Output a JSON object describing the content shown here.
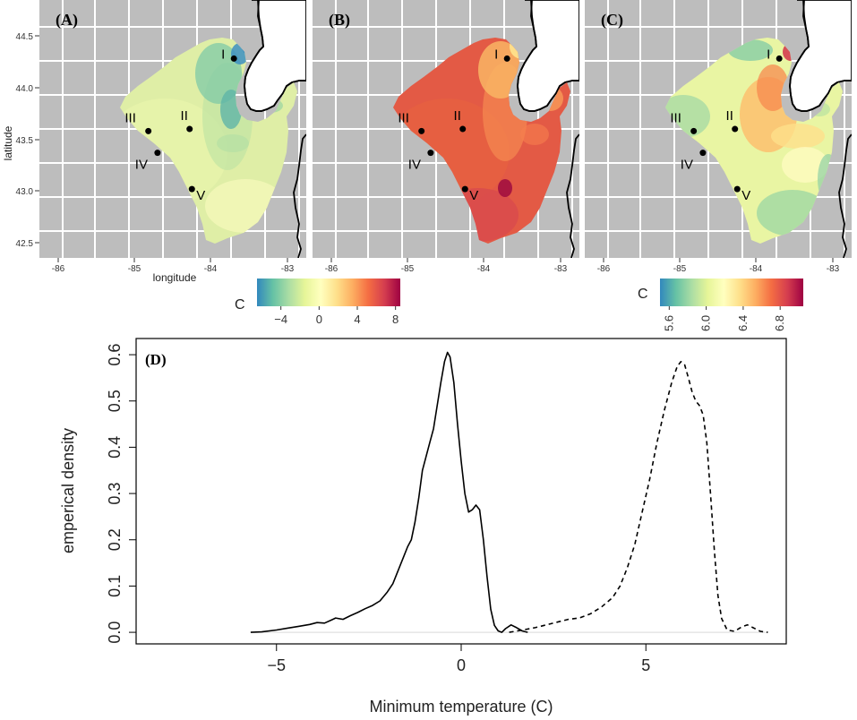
{
  "figure": {
    "colors": {
      "background": "#ffffff",
      "land": "#bdbdbd",
      "county_lines": "#ffffff",
      "lake": "#ffffff",
      "shoreline": "#000000"
    },
    "maps": [
      {
        "id": "A",
        "label": "(A)",
        "x_ticks": [
          "-86",
          "-85",
          "-84",
          "-83"
        ],
        "x_tick_values": [
          -86,
          -85,
          -84,
          -83
        ],
        "y_ticks": [
          "44.5",
          "44.0",
          "43.5",
          "43.0",
          "42.5"
        ],
        "y_tick_values": [
          44.5,
          44.0,
          43.5,
          43.0,
          42.5
        ],
        "xlabel": "longitude",
        "ylabel": "latitude",
        "fill_mode": "anomaly"
      },
      {
        "id": "B",
        "label": "(B)",
        "x_ticks": [
          "-86",
          "-85",
          "-84",
          "-83"
        ],
        "x_tick_values": [
          -86,
          -85,
          -84,
          -83
        ],
        "fill_mode": "hot"
      },
      {
        "id": "C",
        "label": "(C)",
        "x_ticks": [
          "-86",
          "-85",
          "-84",
          "-83"
        ],
        "x_tick_values": [
          -86,
          -85,
          -84,
          -83
        ],
        "fill_mode": "sd"
      }
    ],
    "sites": [
      {
        "label": "I",
        "lon": -83.7,
        "lat": 44.28
      },
      {
        "label": "II",
        "lon": -84.28,
        "lat": 43.6
      },
      {
        "label": "III",
        "lon": -84.82,
        "lat": 43.58
      },
      {
        "label": "IV",
        "lon": -84.7,
        "lat": 43.37
      },
      {
        "label": "V",
        "lon": -84.25,
        "lat": 43.02
      }
    ],
    "colorbars": [
      {
        "label": "C",
        "ticks": [
          "−4",
          "0",
          "4",
          "8"
        ],
        "tick_values": [
          -4,
          0,
          4,
          8
        ],
        "range": [
          -6.5,
          8.5
        ],
        "colors": [
          "#3288bd",
          "#66c2a5",
          "#abdda4",
          "#e6f598",
          "#ffffbf",
          "#fee08b",
          "#fdae61",
          "#f46d43",
          "#d53e4f",
          "#9e0142"
        ]
      },
      {
        "label": "C",
        "ticks": [
          "5.6",
          "6.0",
          "6.4",
          "6.8"
        ],
        "tick_values": [
          5.6,
          6.0,
          6.4,
          6.8
        ],
        "range": [
          5.5,
          7.05
        ],
        "colors": [
          "#3288bd",
          "#66c2a5",
          "#abdda4",
          "#e6f598",
          "#ffffbf",
          "#fee08b",
          "#fdae61",
          "#f46d43",
          "#d53e4f",
          "#9e0142"
        ]
      }
    ]
  },
  "chart_data": {
    "type": "line",
    "panel_label": "(D)",
    "xlabel": "Minimum temperature (C)",
    "ylabel": "emperical density",
    "xlim": [
      -8.8,
      8.8
    ],
    "ylim": [
      -0.025,
      0.635
    ],
    "x_ticks": [
      -5,
      0,
      5
    ],
    "x_tick_labels": [
      "−5",
      "0",
      "5"
    ],
    "y_ticks": [
      0.0,
      0.1,
      0.2,
      0.3,
      0.4,
      0.5,
      0.6
    ],
    "y_tick_labels": [
      "0.0",
      "0.1",
      "0.2",
      "0.3",
      "0.4",
      "0.5",
      "0.6"
    ],
    "series": [
      {
        "name": "solid",
        "style": "solid",
        "points": [
          [
            -5.7,
            0.0
          ],
          [
            -5.4,
            0.001
          ],
          [
            -5.0,
            0.005
          ],
          [
            -4.7,
            0.009
          ],
          [
            -4.4,
            0.013
          ],
          [
            -4.1,
            0.017
          ],
          [
            -3.9,
            0.021
          ],
          [
            -3.7,
            0.02
          ],
          [
            -3.5,
            0.027
          ],
          [
            -3.4,
            0.031
          ],
          [
            -3.2,
            0.028
          ],
          [
            -3.0,
            0.036
          ],
          [
            -2.8,
            0.043
          ],
          [
            -2.6,
            0.051
          ],
          [
            -2.4,
            0.058
          ],
          [
            -2.2,
            0.068
          ],
          [
            -2.0,
            0.087
          ],
          [
            -1.85,
            0.105
          ],
          [
            -1.7,
            0.135
          ],
          [
            -1.55,
            0.165
          ],
          [
            -1.45,
            0.185
          ],
          [
            -1.35,
            0.2
          ],
          [
            -1.25,
            0.238
          ],
          [
            -1.15,
            0.29
          ],
          [
            -1.05,
            0.35
          ],
          [
            -0.95,
            0.38
          ],
          [
            -0.85,
            0.41
          ],
          [
            -0.75,
            0.44
          ],
          [
            -0.65,
            0.49
          ],
          [
            -0.55,
            0.54
          ],
          [
            -0.45,
            0.585
          ],
          [
            -0.37,
            0.605
          ],
          [
            -0.3,
            0.595
          ],
          [
            -0.2,
            0.54
          ],
          [
            -0.1,
            0.45
          ],
          [
            0.0,
            0.37
          ],
          [
            0.1,
            0.3
          ],
          [
            0.2,
            0.26
          ],
          [
            0.3,
            0.265
          ],
          [
            0.4,
            0.275
          ],
          [
            0.5,
            0.265
          ],
          [
            0.6,
            0.2
          ],
          [
            0.7,
            0.12
          ],
          [
            0.8,
            0.05
          ],
          [
            0.9,
            0.015
          ],
          [
            1.0,
            0.003
          ],
          [
            1.1,
            0.0
          ],
          [
            1.2,
            0.008
          ],
          [
            1.35,
            0.016
          ],
          [
            1.5,
            0.01
          ],
          [
            1.65,
            0.003
          ],
          [
            1.8,
            0.0
          ]
        ]
      },
      {
        "name": "dashed",
        "style": "dashed",
        "points": [
          [
            1.3,
            0.0
          ],
          [
            1.6,
            0.004
          ],
          [
            2.0,
            0.01
          ],
          [
            2.3,
            0.016
          ],
          [
            2.6,
            0.022
          ],
          [
            2.9,
            0.028
          ],
          [
            3.2,
            0.031
          ],
          [
            3.5,
            0.04
          ],
          [
            3.8,
            0.055
          ],
          [
            4.1,
            0.075
          ],
          [
            4.3,
            0.1
          ],
          [
            4.5,
            0.14
          ],
          [
            4.7,
            0.19
          ],
          [
            4.9,
            0.26
          ],
          [
            5.1,
            0.33
          ],
          [
            5.3,
            0.41
          ],
          [
            5.5,
            0.48
          ],
          [
            5.7,
            0.54
          ],
          [
            5.85,
            0.575
          ],
          [
            5.95,
            0.585
          ],
          [
            6.05,
            0.578
          ],
          [
            6.15,
            0.55
          ],
          [
            6.25,
            0.52
          ],
          [
            6.35,
            0.5
          ],
          [
            6.45,
            0.49
          ],
          [
            6.55,
            0.47
          ],
          [
            6.65,
            0.41
          ],
          [
            6.75,
            0.3
          ],
          [
            6.85,
            0.18
          ],
          [
            6.95,
            0.08
          ],
          [
            7.05,
            0.03
          ],
          [
            7.2,
            0.005
          ],
          [
            7.4,
            0.002
          ],
          [
            7.6,
            0.012
          ],
          [
            7.75,
            0.016
          ],
          [
            7.9,
            0.01
          ],
          [
            8.1,
            0.002
          ],
          [
            8.3,
            0.0
          ]
        ]
      }
    ]
  }
}
